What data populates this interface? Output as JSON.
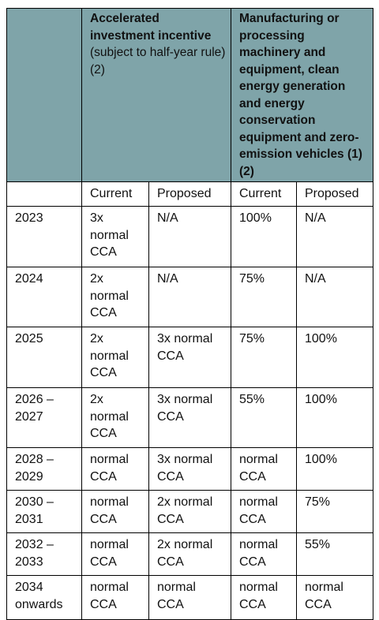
{
  "header": {
    "group_1": {
      "title": "Accelerated investment incentive",
      "subtitle": "(subject to half-year rule) (2)"
    },
    "group_2": {
      "title": "Manufacturing or processing machinery and equipment, clean energy generation and energy conservation equipment and zero-emission vehicles (1) (2)"
    }
  },
  "subheader": [
    "Current",
    "Proposed",
    "Current",
    "Proposed"
  ],
  "rows": [
    [
      "2023",
      "3x normal CCA",
      "N/A",
      "100%",
      "N/A"
    ],
    [
      "2024",
      "2x normal CCA",
      "N/A",
      "75%",
      "N/A"
    ],
    [
      "2025",
      "2x normal CCA",
      "3x normal CCA",
      "75%",
      "100%"
    ],
    [
      "2026 – 2027",
      "2x normal CCA",
      "3x normal CCA",
      "55%",
      "100%"
    ],
    [
      "2028 – 2029",
      "normal CCA",
      "3x normal CCA",
      "normal CCA",
      "100%"
    ],
    [
      "2030 – 2031",
      "normal CCA",
      "2x normal CCA",
      "normal CCA",
      "75%"
    ],
    [
      "2032 – 2033",
      "normal CCA",
      "2x normal CCA",
      "normal CCA",
      "55%"
    ],
    [
      "2034 onwards",
      "normal CCA",
      "normal CCA",
      "normal CCA",
      "normal CCA"
    ]
  ]
}
